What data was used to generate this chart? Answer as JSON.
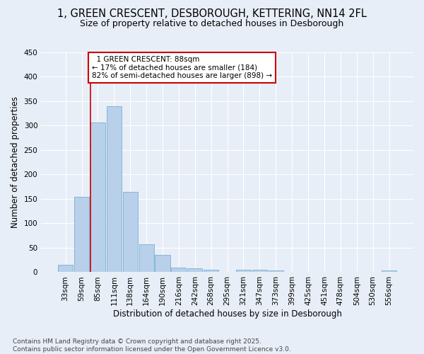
{
  "title_line1": "1, GREEN CRESCENT, DESBOROUGH, KETTERING, NN14 2FL",
  "title_line2": "Size of property relative to detached houses in Desborough",
  "xlabel": "Distribution of detached houses by size in Desborough",
  "ylabel": "Number of detached properties",
  "footer_line1": "Contains HM Land Registry data © Crown copyright and database right 2025.",
  "footer_line2": "Contains public sector information licensed under the Open Government Licence v3.0.",
  "categories": [
    "33sqm",
    "59sqm",
    "85sqm",
    "111sqm",
    "138sqm",
    "164sqm",
    "190sqm",
    "216sqm",
    "242sqm",
    "268sqm",
    "295sqm",
    "321sqm",
    "347sqm",
    "373sqm",
    "399sqm",
    "425sqm",
    "451sqm",
    "478sqm",
    "504sqm",
    "530sqm",
    "556sqm"
  ],
  "values": [
    15,
    155,
    307,
    340,
    165,
    57,
    35,
    10,
    8,
    5,
    0,
    5,
    5,
    4,
    0,
    0,
    0,
    0,
    0,
    0,
    4
  ],
  "bar_color": "#b8d0ea",
  "bar_edge_color": "#7aafd4",
  "background_color": "#e8eef7",
  "ylim": [
    0,
    450
  ],
  "yticks": [
    0,
    50,
    100,
    150,
    200,
    250,
    300,
    350,
    400,
    450
  ],
  "property_label": "1 GREEN CRESCENT: 88sqm",
  "pct_smaller": 17,
  "n_smaller": 184,
  "pct_larger_semi": 82,
  "n_larger_semi": 898,
  "red_line_bin_index": 2,
  "annotation_box_color": "#ffffff",
  "annotation_box_edge": "#cc0000",
  "red_line_color": "#cc0000",
  "grid_color": "#ffffff",
  "title1_fontsize": 10.5,
  "title2_fontsize": 9,
  "axis_label_fontsize": 8.5,
  "tick_fontsize": 7.5,
  "annotation_fontsize": 7.5,
  "footer_fontsize": 6.5
}
